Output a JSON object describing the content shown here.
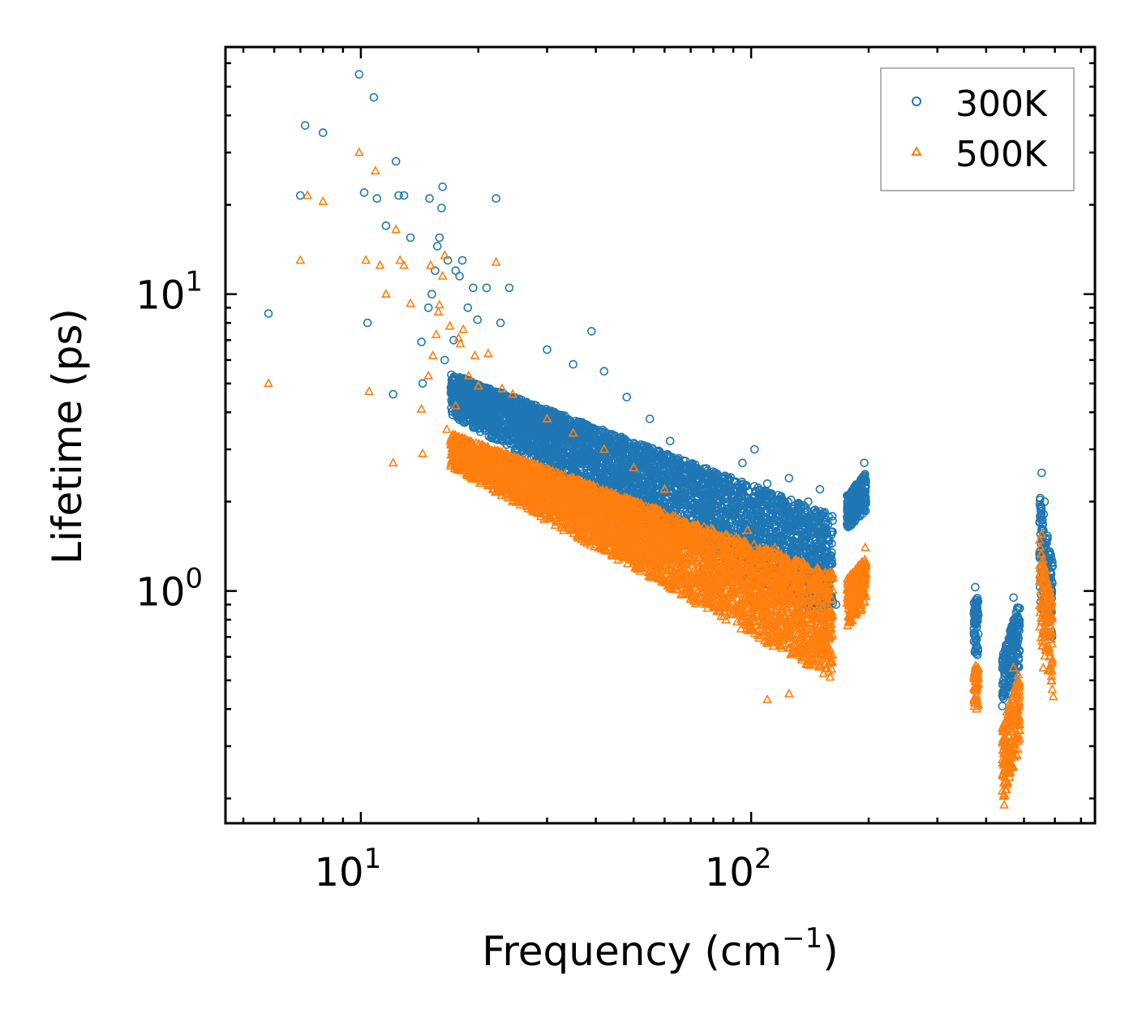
{
  "chart_data": {
    "type": "scatter",
    "title": "",
    "xlabel": "Frequency (cm",
    "xlabel_sup": "−1",
    "xlabel_suffix": ")",
    "ylabel": "Lifetime (ps)",
    "xscale": "log",
    "yscale": "log",
    "xlim": [
      4.5,
      760
    ],
    "ylim": [
      0.165,
      68
    ],
    "x_ticks": [
      {
        "value": 10,
        "base": "10",
        "exp": "1"
      },
      {
        "value": 100,
        "base": "10",
        "exp": "2"
      }
    ],
    "y_ticks": [
      {
        "value": 1,
        "base": "10",
        "exp": "0"
      },
      {
        "value": 10,
        "base": "10",
        "exp": "1"
      }
    ],
    "legend_position": "top-right",
    "series": [
      {
        "name": "300K",
        "marker": "circle",
        "color": "#1f77b4",
        "points": [
          [
            5.8,
            8.6
          ],
          [
            7.0,
            21.5
          ],
          [
            7.2,
            37.0
          ],
          [
            8.0,
            35.0
          ],
          [
            9.9,
            55.0
          ],
          [
            10.2,
            22.0
          ],
          [
            10.4,
            8.0
          ],
          [
            10.8,
            46.0
          ],
          [
            11.0,
            21.0
          ],
          [
            11.6,
            17.0
          ],
          [
            12.1,
            4.6
          ],
          [
            12.3,
            28.0
          ],
          [
            12.5,
            21.5
          ],
          [
            12.9,
            21.5
          ],
          [
            13.4,
            15.5
          ],
          [
            14.3,
            6.9
          ],
          [
            14.4,
            5.0
          ],
          [
            14.9,
            9.0
          ],
          [
            15.0,
            21.0
          ],
          [
            15.2,
            10.0
          ],
          [
            15.5,
            12.0
          ],
          [
            15.7,
            14.5
          ],
          [
            15.9,
            15.5
          ],
          [
            16.1,
            19.5
          ],
          [
            16.2,
            23.0
          ],
          [
            16.4,
            6.0
          ],
          [
            16.7,
            13.0
          ],
          [
            17.3,
            7.0
          ],
          [
            17.5,
            12.0
          ],
          [
            17.9,
            11.5
          ],
          [
            18.2,
            13.0
          ],
          [
            18.8,
            9.0
          ],
          [
            19.4,
            10.5
          ],
          [
            19.9,
            8.2
          ],
          [
            21.0,
            10.5
          ],
          [
            22.2,
            21.0
          ],
          [
            22.8,
            8.0
          ],
          [
            24.0,
            10.5
          ],
          [
            30.0,
            6.5
          ],
          [
            35.0,
            5.8
          ],
          [
            39.0,
            7.5
          ],
          [
            42.0,
            5.5
          ],
          [
            48.0,
            4.5
          ],
          [
            55.0,
            3.8
          ],
          [
            62.0,
            3.2
          ],
          [
            72.0,
            2.6
          ],
          [
            85.0,
            2.2
          ],
          [
            95.0,
            2.7
          ],
          [
            102.0,
            3.0
          ],
          [
            110.0,
            2.3
          ],
          [
            125.0,
            2.4
          ],
          [
            140.0,
            2.0
          ],
          [
            150.0,
            2.2
          ],
          [
            158.0,
            1.0
          ],
          [
            165.0,
            0.9
          ],
          [
            180.0,
            1.9
          ],
          [
            190.0,
            2.3
          ],
          [
            195.0,
            2.7
          ],
          [
            375.0,
            1.03
          ],
          [
            378.0,
            0.65
          ],
          [
            445.0,
            0.45
          ],
          [
            460.0,
            0.55
          ],
          [
            470.0,
            0.95
          ],
          [
            480.0,
            0.65
          ],
          [
            555.0,
            2.5
          ],
          [
            565.0,
            2.0
          ],
          [
            575.0,
            1.2
          ],
          [
            590.0,
            0.7
          ]
        ],
        "bands": [
          {
            "x_range": [
              17.0,
              162.0
            ],
            "y_start": [
              3.9,
              5.4
            ],
            "y_end": [
              0.75,
              1.8
            ]
          },
          {
            "x_range": [
              176.0,
              197.0
            ],
            "y_start": [
              1.6,
              2.1
            ],
            "y_end": [
              1.85,
              2.5
            ]
          },
          {
            "x_range": [
              372.0,
              382.0
            ],
            "y_start": [
              0.6,
              0.95
            ],
            "y_end": [
              0.6,
              0.95
            ]
          },
          {
            "x_range": [
              440.0,
              488.0
            ],
            "y_start": [
              0.4,
              0.6
            ],
            "y_end": [
              0.55,
              0.95
            ]
          },
          {
            "x_range": [
              548.0,
              592.0
            ],
            "y_start": [
              0.9,
              2.2
            ],
            "y_end": [
              0.7,
              1.3
            ]
          }
        ]
      },
      {
        "name": "500K",
        "marker": "triangle",
        "color": "#ff7f0e",
        "points": [
          [
            5.8,
            5.0
          ],
          [
            7.0,
            13.0
          ],
          [
            7.3,
            21.5
          ],
          [
            8.0,
            20.5
          ],
          [
            9.9,
            30.0
          ],
          [
            10.3,
            13.0
          ],
          [
            10.5,
            4.7
          ],
          [
            10.9,
            26.0
          ],
          [
            11.2,
            12.5
          ],
          [
            11.6,
            10.0
          ],
          [
            12.1,
            2.7
          ],
          [
            12.3,
            16.5
          ],
          [
            12.6,
            13.0
          ],
          [
            12.9,
            12.5
          ],
          [
            13.4,
            9.3
          ],
          [
            14.3,
            4.1
          ],
          [
            14.4,
            2.9
          ],
          [
            14.9,
            5.3
          ],
          [
            15.1,
            12.5
          ],
          [
            15.3,
            6.2
          ],
          [
            15.6,
            7.3
          ],
          [
            15.8,
            8.7
          ],
          [
            15.9,
            9.2
          ],
          [
            16.2,
            11.5
          ],
          [
            16.4,
            13.5
          ],
          [
            16.6,
            3.5
          ],
          [
            16.9,
            7.8
          ],
          [
            17.5,
            4.2
          ],
          [
            17.8,
            7.1
          ],
          [
            18.0,
            6.8
          ],
          [
            18.3,
            7.6
          ],
          [
            18.9,
            5.3
          ],
          [
            19.6,
            6.2
          ],
          [
            20.0,
            4.9
          ],
          [
            21.2,
            6.3
          ],
          [
            22.2,
            12.8
          ],
          [
            23.0,
            4.8
          ],
          [
            24.5,
            4.6
          ],
          [
            30.0,
            3.8
          ],
          [
            35.0,
            3.4
          ],
          [
            42.0,
            3.0
          ],
          [
            50.0,
            2.6
          ],
          [
            60.0,
            2.2
          ],
          [
            72.0,
            1.6
          ],
          [
            85.0,
            1.35
          ],
          [
            98.0,
            1.6
          ],
          [
            115.0,
            1.4
          ],
          [
            130.0,
            1.25
          ],
          [
            110.0,
            0.43
          ],
          [
            125.0,
            0.45
          ],
          [
            150.0,
            1.05
          ],
          [
            160.0,
            0.75
          ],
          [
            180.0,
            1.0
          ],
          [
            192.0,
            1.25
          ],
          [
            196.0,
            1.4
          ],
          [
            376.0,
            0.56
          ],
          [
            378.0,
            0.4
          ],
          [
            440.0,
            0.27
          ],
          [
            445.0,
            0.19
          ],
          [
            470.0,
            0.55
          ],
          [
            480.0,
            0.38
          ],
          [
            555.0,
            1.55
          ],
          [
            560.0,
            0.55
          ],
          [
            575.0,
            0.85
          ],
          [
            595.0,
            0.44
          ]
        ],
        "bands": [
          {
            "x_range": [
              17.0,
              162.0
            ],
            "y_start": [
              2.6,
              3.4
            ],
            "y_end": [
              0.5,
              1.15
            ]
          },
          {
            "x_range": [
              176.0,
              197.0
            ],
            "y_start": [
              0.75,
              1.1
            ],
            "y_end": [
              0.9,
              1.3
            ]
          },
          {
            "x_range": [
              372.0,
              382.0
            ],
            "y_start": [
              0.4,
              0.55
            ],
            "y_end": [
              0.4,
              0.55
            ]
          },
          {
            "x_range": [
              440.0,
              488.0
            ],
            "y_start": [
              0.19,
              0.35
            ],
            "y_end": [
              0.3,
              0.55
            ]
          },
          {
            "x_range": [
              548.0,
              592.0
            ],
            "y_start": [
              0.7,
              1.5
            ],
            "y_end": [
              0.45,
              0.9
            ]
          }
        ]
      }
    ]
  }
}
